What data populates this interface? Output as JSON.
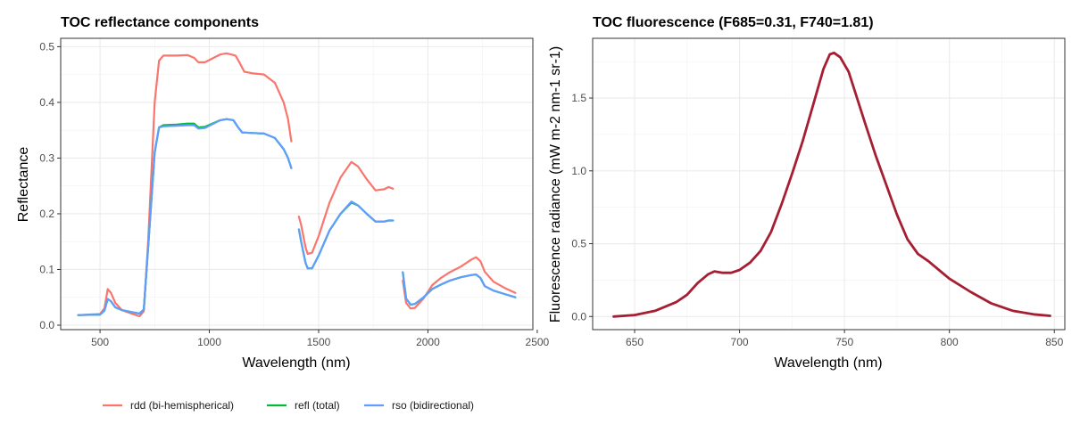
{
  "chart_data": [
    {
      "type": "line",
      "title": "TOC reflectance components",
      "xlabel": "Wavelength (nm)",
      "ylabel": "Reflectance",
      "xlim": [
        320,
        2480
      ],
      "ylim": [
        -0.008,
        0.515
      ],
      "xticks": [
        500,
        1000,
        1500,
        2000,
        2500
      ],
      "yticks": [
        0.0,
        0.1,
        0.2,
        0.3,
        0.4,
        0.5
      ],
      "ytick_labels": [
        "0.0",
        "0.1",
        "0.2",
        "0.3",
        "0.4",
        "0.5"
      ],
      "grid": true,
      "legend_position": "bottom",
      "series": [
        {
          "name": "rdd (bi-hemispherical)",
          "color": "#F8766D",
          "segments": [
            [
              [
                400,
                0.018
              ],
              [
                500,
                0.02
              ],
              [
                520,
                0.03
              ],
              [
                535,
                0.065
              ],
              [
                550,
                0.058
              ],
              [
                570,
                0.04
              ],
              [
                600,
                0.027
              ],
              [
                650,
                0.02
              ],
              [
                680,
                0.016
              ],
              [
                700,
                0.025
              ],
              [
                720,
                0.15
              ],
              [
                750,
                0.4
              ],
              [
                770,
                0.475
              ],
              [
                790,
                0.484
              ],
              [
                850,
                0.484
              ],
              [
                900,
                0.485
              ],
              [
                930,
                0.48
              ],
              [
                950,
                0.472
              ],
              [
                980,
                0.472
              ],
              [
                1050,
                0.486
              ],
              [
                1080,
                0.488
              ],
              [
                1120,
                0.484
              ],
              [
                1140,
                0.47
              ],
              [
                1160,
                0.455
              ],
              [
                1200,
                0.452
              ],
              [
                1250,
                0.45
              ],
              [
                1300,
                0.435
              ],
              [
                1340,
                0.4
              ],
              [
                1360,
                0.37
              ],
              [
                1375,
                0.33
              ]
            ],
            [
              [
                1410,
                0.195
              ],
              [
                1420,
                0.18
              ],
              [
                1440,
                0.14
              ],
              [
                1450,
                0.128
              ],
              [
                1470,
                0.13
              ],
              [
                1500,
                0.16
              ],
              [
                1550,
                0.22
              ],
              [
                1600,
                0.265
              ],
              [
                1650,
                0.293
              ],
              [
                1680,
                0.285
              ],
              [
                1720,
                0.262
              ],
              [
                1760,
                0.242
              ],
              [
                1800,
                0.244
              ],
              [
                1820,
                0.248
              ],
              [
                1840,
                0.245
              ]
            ],
            [
              [
                1885,
                0.08
              ],
              [
                1900,
                0.04
              ],
              [
                1920,
                0.03
              ],
              [
                1940,
                0.031
              ],
              [
                1980,
                0.048
              ],
              [
                2020,
                0.072
              ],
              [
                2060,
                0.085
              ],
              [
                2100,
                0.095
              ],
              [
                2150,
                0.105
              ],
              [
                2200,
                0.118
              ],
              [
                2220,
                0.122
              ],
              [
                2240,
                0.115
              ],
              [
                2260,
                0.096
              ],
              [
                2300,
                0.078
              ],
              [
                2350,
                0.067
              ],
              [
                2400,
                0.058
              ]
            ]
          ]
        },
        {
          "name": "refl (total)",
          "color": "#00BA38",
          "segments": [
            [
              [
                400,
                0.018
              ],
              [
                500,
                0.019
              ],
              [
                520,
                0.026
              ],
              [
                535,
                0.047
              ],
              [
                550,
                0.043
              ],
              [
                570,
                0.032
              ],
              [
                600,
                0.027
              ],
              [
                650,
                0.023
              ],
              [
                680,
                0.021
              ],
              [
                700,
                0.028
              ],
              [
                720,
                0.14
              ],
              [
                750,
                0.31
              ],
              [
                770,
                0.355
              ],
              [
                790,
                0.359
              ],
              [
                850,
                0.36
              ],
              [
                900,
                0.362
              ],
              [
                930,
                0.362
              ],
              [
                950,
                0.355
              ],
              [
                980,
                0.356
              ],
              [
                1050,
                0.368
              ],
              [
                1080,
                0.37
              ],
              [
                1110,
                0.368
              ],
              [
                1130,
                0.356
              ],
              [
                1150,
                0.346
              ],
              [
                1200,
                0.345
              ],
              [
                1250,
                0.344
              ],
              [
                1300,
                0.336
              ],
              [
                1340,
                0.316
              ],
              [
                1360,
                0.3
              ],
              [
                1375,
                0.282
              ]
            ],
            [
              [
                1410,
                0.172
              ],
              [
                1420,
                0.15
              ],
              [
                1440,
                0.112
              ],
              [
                1450,
                0.102
              ],
              [
                1470,
                0.102
              ],
              [
                1500,
                0.125
              ],
              [
                1550,
                0.17
              ],
              [
                1600,
                0.2
              ],
              [
                1650,
                0.22
              ],
              [
                1680,
                0.215
              ],
              [
                1720,
                0.2
              ],
              [
                1760,
                0.186
              ],
              [
                1800,
                0.186
              ],
              [
                1820,
                0.188
              ],
              [
                1840,
                0.188
              ]
            ],
            [
              [
                1885,
                0.095
              ],
              [
                1900,
                0.048
              ],
              [
                1920,
                0.037
              ],
              [
                1940,
                0.038
              ],
              [
                1980,
                0.05
              ],
              [
                2020,
                0.065
              ],
              [
                2060,
                0.073
              ],
              [
                2100,
                0.08
              ],
              [
                2150,
                0.086
              ],
              [
                2200,
                0.09
              ],
              [
                2220,
                0.091
              ],
              [
                2240,
                0.085
              ],
              [
                2260,
                0.07
              ],
              [
                2300,
                0.062
              ],
              [
                2350,
                0.056
              ],
              [
                2400,
                0.05
              ]
            ]
          ]
        },
        {
          "name": "rso (bidirectional)",
          "color": "#619CFF",
          "segments": [
            [
              [
                400,
                0.018
              ],
              [
                500,
                0.019
              ],
              [
                520,
                0.026
              ],
              [
                535,
                0.047
              ],
              [
                550,
                0.043
              ],
              [
                570,
                0.032
              ],
              [
                600,
                0.027
              ],
              [
                650,
                0.023
              ],
              [
                680,
                0.021
              ],
              [
                700,
                0.028
              ],
              [
                720,
                0.14
              ],
              [
                750,
                0.31
              ],
              [
                770,
                0.355
              ],
              [
                790,
                0.357
              ],
              [
                850,
                0.358
              ],
              [
                900,
                0.359
              ],
              [
                930,
                0.359
              ],
              [
                950,
                0.353
              ],
              [
                980,
                0.354
              ],
              [
                1050,
                0.368
              ],
              [
                1080,
                0.37
              ],
              [
                1110,
                0.368
              ],
              [
                1130,
                0.356
              ],
              [
                1150,
                0.346
              ],
              [
                1200,
                0.345
              ],
              [
                1250,
                0.344
              ],
              [
                1300,
                0.336
              ],
              [
                1340,
                0.316
              ],
              [
                1360,
                0.3
              ],
              [
                1375,
                0.282
              ]
            ],
            [
              [
                1410,
                0.172
              ],
              [
                1420,
                0.15
              ],
              [
                1440,
                0.112
              ],
              [
                1450,
                0.102
              ],
              [
                1470,
                0.102
              ],
              [
                1500,
                0.125
              ],
              [
                1550,
                0.17
              ],
              [
                1600,
                0.2
              ],
              [
                1650,
                0.222
              ],
              [
                1680,
                0.215
              ],
              [
                1720,
                0.2
              ],
              [
                1760,
                0.186
              ],
              [
                1800,
                0.186
              ],
              [
                1820,
                0.188
              ],
              [
                1840,
                0.188
              ]
            ],
            [
              [
                1885,
                0.095
              ],
              [
                1900,
                0.048
              ],
              [
                1920,
                0.037
              ],
              [
                1940,
                0.038
              ],
              [
                1980,
                0.05
              ],
              [
                2020,
                0.065
              ],
              [
                2060,
                0.073
              ],
              [
                2100,
                0.08
              ],
              [
                2150,
                0.086
              ],
              [
                2200,
                0.09
              ],
              [
                2220,
                0.091
              ],
              [
                2240,
                0.085
              ],
              [
                2260,
                0.07
              ],
              [
                2300,
                0.062
              ],
              [
                2350,
                0.056
              ],
              [
                2400,
                0.05
              ]
            ]
          ]
        }
      ]
    },
    {
      "type": "line",
      "title": "TOC fluorescence (F685=0.31, F740=1.81)",
      "xlabel": "Wavelength (nm)",
      "ylabel": "Fluorescence radiance (mW m-2 nm-1 sr-1)",
      "xlim": [
        630,
        855
      ],
      "ylim": [
        -0.09,
        1.91
      ],
      "xticks": [
        650,
        700,
        750,
        800,
        850
      ],
      "yticks": [
        0.0,
        0.5,
        1.0,
        1.5
      ],
      "ytick_labels": [
        "0.0",
        "0.5",
        "1.0",
        "1.5"
      ],
      "grid": true,
      "series": [
        {
          "color": "#A51E32",
          "segments": [
            [
              [
                640,
                0.0
              ],
              [
                650,
                0.01
              ],
              [
                660,
                0.04
              ],
              [
                670,
                0.1
              ],
              [
                675,
                0.15
              ],
              [
                680,
                0.23
              ],
              [
                685,
                0.29
              ],
              [
                688,
                0.31
              ],
              [
                692,
                0.3
              ],
              [
                696,
                0.3
              ],
              [
                700,
                0.32
              ],
              [
                705,
                0.37
              ],
              [
                710,
                0.45
              ],
              [
                715,
                0.58
              ],
              [
                720,
                0.77
              ],
              [
                725,
                0.98
              ],
              [
                730,
                1.2
              ],
              [
                735,
                1.45
              ],
              [
                740,
                1.7
              ],
              [
                743,
                1.8
              ],
              [
                745,
                1.81
              ],
              [
                748,
                1.78
              ],
              [
                752,
                1.68
              ],
              [
                756,
                1.5
              ],
              [
                760,
                1.32
              ],
              [
                765,
                1.1
              ],
              [
                770,
                0.9
              ],
              [
                775,
                0.7
              ],
              [
                780,
                0.53
              ],
              [
                785,
                0.43
              ],
              [
                790,
                0.38
              ],
              [
                795,
                0.32
              ],
              [
                800,
                0.26
              ],
              [
                810,
                0.17
              ],
              [
                820,
                0.09
              ],
              [
                830,
                0.04
              ],
              [
                840,
                0.015
              ],
              [
                848,
                0.005
              ]
            ]
          ]
        }
      ]
    }
  ]
}
